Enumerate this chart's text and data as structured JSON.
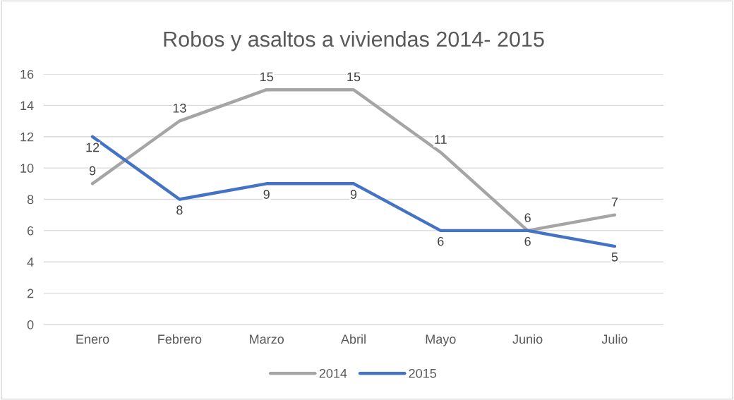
{
  "chart_data": {
    "type": "line",
    "title": "Robos y asaltos a viviendas 2014- 2015",
    "categories": [
      "Enero",
      "Febrero",
      "Marzo",
      "Abril",
      "Mayo",
      "Junio",
      "Julio"
    ],
    "series": [
      {
        "name": "2014",
        "color": "#a5a5a5",
        "values": [
          9,
          13,
          15,
          15,
          11,
          6,
          7
        ]
      },
      {
        "name": "2015",
        "color": "#4472c4",
        "values": [
          12,
          8,
          9,
          9,
          6,
          6,
          5
        ]
      }
    ],
    "ylim": [
      0,
      16
    ],
    "yticks": [
      0,
      2,
      4,
      6,
      8,
      10,
      12,
      14,
      16
    ],
    "grid": "y",
    "legend": "bottom",
    "data_labels": true,
    "marker": "none",
    "line_style": "solid"
  }
}
